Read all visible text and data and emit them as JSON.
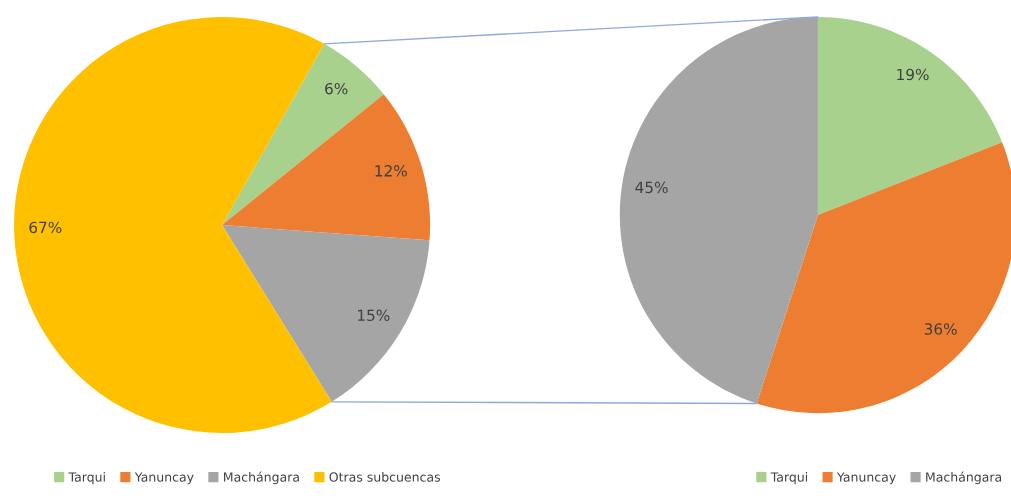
{
  "chart_data": [
    {
      "type": "pie",
      "categories": [
        "Tarqui",
        "Yanuncay",
        "Machángara",
        "Otras subcuencas"
      ],
      "values": [
        6,
        12,
        15,
        67
      ],
      "colors": [
        "#a9d18e",
        "#ed7d31",
        "#a5a5a5",
        "#ffc000"
      ],
      "value_labels": [
        "6%",
        "12%",
        "15%",
        "67%"
      ],
      "legend": "bottom"
    },
    {
      "type": "pie",
      "categories": [
        "Tarqui",
        "Yanuncay",
        "Machángara"
      ],
      "values": [
        19,
        36,
        45
      ],
      "colors": [
        "#a9d18e",
        "#ed7d31",
        "#a5a5a5"
      ],
      "value_labels": [
        "19%",
        "36%",
        "45%"
      ],
      "legend": "bottom"
    }
  ]
}
